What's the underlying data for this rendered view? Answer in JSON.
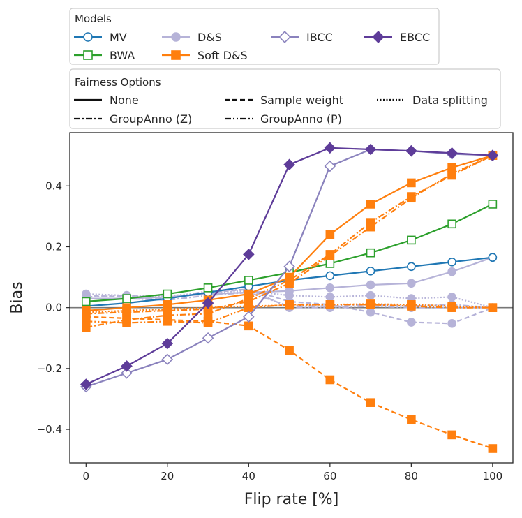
{
  "chart_data": {
    "type": "line",
    "xlabel": "Flip rate [%]",
    "ylabel": "Bias",
    "xlim": [
      -4,
      105
    ],
    "ylim": [
      -0.51,
      0.575
    ],
    "x_ticks": [
      0,
      20,
      40,
      60,
      80,
      100
    ],
    "y_ticks": [
      -0.4,
      -0.2,
      0.0,
      0.2,
      0.4
    ],
    "x_tick_labels": [
      "0",
      "20",
      "40",
      "60",
      "80",
      "100"
    ],
    "y_tick_labels": [
      "−0.4",
      "−0.2",
      "0.0",
      "0.2",
      "0.4"
    ],
    "x": [
      0,
      10,
      20,
      30,
      40,
      50,
      60,
      70,
      80,
      90,
      100
    ],
    "legend_models": {
      "title": "Models",
      "entries": [
        {
          "label": "MV",
          "color": "#1f77b4",
          "marker": "circle",
          "filled": false
        },
        {
          "label": "D&S",
          "color": "#b6b3d8",
          "marker": "circle",
          "filled": true
        },
        {
          "label": "IBCC",
          "color": "#8a82bd",
          "marker": "diamond",
          "filled": false
        },
        {
          "label": "EBCC",
          "color": "#5e3c99",
          "marker": "diamond",
          "filled": true
        },
        {
          "label": "BWA",
          "color": "#2ca02c",
          "marker": "square",
          "filled": false
        },
        {
          "label": "Soft D&S",
          "color": "#ff7f0e",
          "marker": "square",
          "filled": true
        }
      ]
    },
    "legend_fairness": {
      "title": "Fairness Options",
      "entries": [
        {
          "label": "None",
          "style": "solid"
        },
        {
          "label": "Sample weight",
          "style": "dashed"
        },
        {
          "label": "Data splitting",
          "style": "dotted"
        },
        {
          "label": "GroupAnno (Z)",
          "style": "dashdot"
        },
        {
          "label": "GroupAnno (P)",
          "style": "dashdotdot"
        }
      ]
    },
    "series": [
      {
        "name": "D&S, Sample weight",
        "color": "#b6b3d8",
        "style": "dashed",
        "marker": "circle",
        "filled": true,
        "values": [
          0.04,
          0.035,
          0.03,
          0.05,
          0.06,
          0.02,
          0.01,
          -0.015,
          -0.048,
          -0.052,
          0.0
        ]
      },
      {
        "name": "D&S, Data splitting",
        "color": "#b6b3d8",
        "style": "dotted",
        "marker": "circle",
        "filled": true,
        "values": [
          0.045,
          0.04,
          0.038,
          0.05,
          0.055,
          0.04,
          0.035,
          0.04,
          0.03,
          0.035,
          0.0
        ]
      },
      {
        "name": "D&S, GroupAnno (Z)",
        "color": "#b6b3d8",
        "style": "dashdot",
        "marker": "circle",
        "filled": true,
        "values": [
          0.03,
          0.03,
          0.025,
          0.04,
          0.05,
          0.005,
          0.005,
          0.01,
          0.005,
          0.01,
          0.0
        ]
      },
      {
        "name": "D&S, GroupAnno (P)",
        "color": "#b6b3d8",
        "style": "dashdotdot",
        "marker": "circle",
        "filled": true,
        "values": [
          0.035,
          0.04,
          0.03,
          0.055,
          0.06,
          0.0,
          0.0,
          0.005,
          0.0,
          0.0,
          0.0
        ]
      },
      {
        "name": "Soft D&S, Data splitting",
        "color": "#ff7f0e",
        "style": "dotted",
        "marker": "square",
        "filled": true,
        "values": [
          -0.015,
          -0.01,
          -0.005,
          0.0,
          0.005,
          0.008,
          0.01,
          0.012,
          0.01,
          0.005,
          0.0
        ]
      },
      {
        "name": "Soft D&S, GroupAnno (P)",
        "color": "#ff7f0e",
        "style": "dashdotdot",
        "marker": "square",
        "filled": true,
        "values": [
          -0.045,
          -0.05,
          -0.045,
          -0.05,
          0.0,
          0.01,
          0.01,
          0.01,
          0.005,
          0.0,
          0.0
        ]
      },
      {
        "name": "D&S, None",
        "color": "#b6b3d8",
        "style": "solid",
        "marker": "circle",
        "filled": true,
        "values": [
          0.03,
          0.03,
          0.035,
          0.045,
          0.05,
          0.055,
          0.065,
          0.075,
          0.08,
          0.118,
          0.165
        ]
      },
      {
        "name": "MV, None",
        "color": "#1f77b4",
        "style": "solid",
        "marker": "circle",
        "filled": false,
        "values": [
          0.005,
          0.015,
          0.03,
          0.05,
          0.07,
          0.09,
          0.105,
          0.12,
          0.135,
          0.15,
          0.165
        ]
      },
      {
        "name": "BWA, None",
        "color": "#2ca02c",
        "style": "solid",
        "marker": "square",
        "filled": false,
        "values": [
          0.02,
          0.03,
          0.045,
          0.065,
          0.09,
          0.115,
          0.145,
          0.18,
          0.222,
          0.275,
          0.34
        ]
      },
      {
        "name": "Soft D&S, None",
        "color": "#ff7f0e",
        "style": "solid",
        "marker": "square",
        "filled": true,
        "values": [
          -0.01,
          0.0,
          0.01,
          0.025,
          0.045,
          0.1,
          0.24,
          0.34,
          0.41,
          0.46,
          0.5
        ]
      },
      {
        "name": "Soft D&S, Sample weight",
        "color": "#ff7f0e",
        "style": "dashed",
        "marker": "square",
        "filled": true,
        "values": [
          -0.03,
          -0.035,
          -0.04,
          -0.045,
          -0.06,
          -0.14,
          -0.237,
          -0.312,
          -0.368,
          -0.418,
          -0.463
        ]
      },
      {
        "name": "Soft D&S, GroupAnno (Z)",
        "color": "#ff7f0e",
        "style": "dashdot",
        "marker": "square",
        "filled": true,
        "values": [
          -0.065,
          -0.04,
          -0.025,
          -0.02,
          0.03,
          0.09,
          0.175,
          0.28,
          0.365,
          0.435,
          0.5
        ]
      },
      {
        "name": "Soft D&S, GroupAnno (Z) b",
        "color": "#ff7f0e",
        "style": "dashdot",
        "marker": "square",
        "filled": true,
        "values": [
          -0.02,
          -0.015,
          -0.01,
          -0.005,
          0.02,
          0.08,
          0.17,
          0.265,
          0.36,
          0.44,
          0.5
        ]
      },
      {
        "name": "IBCC, None",
        "color": "#8a82bd",
        "style": "solid",
        "marker": "diamond",
        "filled": false,
        "values": [
          -0.26,
          -0.215,
          -0.17,
          -0.1,
          -0.03,
          0.135,
          0.465,
          0.52,
          0.515,
          0.505,
          0.5
        ]
      },
      {
        "name": "EBCC, None",
        "color": "#5e3c99",
        "style": "solid",
        "marker": "diamond",
        "filled": true,
        "values": [
          -0.252,
          -0.192,
          -0.118,
          0.015,
          0.175,
          0.47,
          0.525,
          0.52,
          0.515,
          0.508,
          0.5
        ]
      }
    ]
  }
}
